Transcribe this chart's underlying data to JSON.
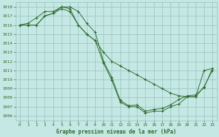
{
  "title": "Graphe pression niveau de la mer (hPa)",
  "bg_color": "#c5e8e4",
  "grid_color": "#90c0bc",
  "line_color": "#2d6a2d",
  "xlim": [
    -0.5,
    23.5
  ],
  "ylim": [
    1005.5,
    1018.5
  ],
  "xticks": [
    0,
    1,
    2,
    3,
    4,
    5,
    6,
    7,
    8,
    9,
    10,
    11,
    12,
    13,
    14,
    15,
    16,
    17,
    18,
    19,
    20,
    21,
    22,
    23
  ],
  "yticks": [
    1006,
    1007,
    1008,
    1009,
    1010,
    1011,
    1012,
    1013,
    1014,
    1015,
    1016,
    1017,
    1018
  ],
  "series": [
    [
      1016.0,
      1016.0,
      1016.0,
      1017.0,
      1017.3,
      1017.8,
      1017.5,
      1016.0,
      1015.0,
      1014.3,
      1013.0,
      1012.0,
      1011.5,
      1011.0,
      1010.5,
      1010.0,
      1009.5,
      1009.0,
      1008.5,
      1008.2,
      1008.1,
      1008.1,
      1009.2,
      1011.0
    ],
    [
      1016.0,
      1016.0,
      1016.0,
      1017.0,
      1017.3,
      1018.0,
      1017.8,
      1016.0,
      1015.0,
      1014.3,
      1011.8,
      1009.9,
      1007.5,
      1007.0,
      1007.0,
      1006.3,
      1006.5,
      1006.5,
      1007.0,
      1007.3,
      1008.1,
      1008.1,
      1011.0,
      1011.2
    ],
    [
      1016.0,
      1016.2,
      1016.8,
      1017.5,
      1017.5,
      1018.0,
      1018.0,
      1017.5,
      1016.2,
      1015.2,
      1012.0,
      1010.2,
      1007.7,
      1007.1,
      1007.2,
      1006.5,
      1006.7,
      1006.8,
      1007.2,
      1007.8,
      1008.2,
      1008.3,
      1009.1,
      1011.2
    ]
  ]
}
